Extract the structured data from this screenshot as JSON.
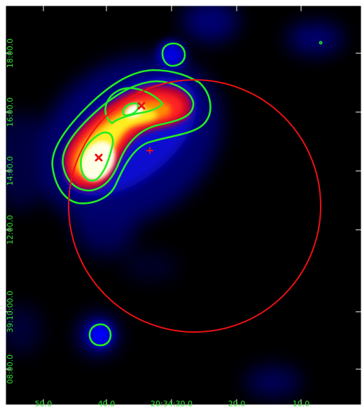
{
  "image": {
    "colormap": "black-blue-red-yellow-white",
    "contour_color": "#22ee22",
    "marker_color": "#ee1111",
    "frame_color": "#ffffff"
  },
  "axes": {
    "ra_ticks": [
      "50.0",
      "40.0",
      "20:34:30.0",
      "20.0",
      "10.0"
    ],
    "dec_ticks": [
      "18:00.0",
      "16:00.0",
      "14:00.0",
      "12:00.0",
      "39:10:00.0",
      "08:00.0"
    ]
  },
  "markers": [
    {
      "name": "source-a",
      "shape": "x"
    },
    {
      "name": "source-b",
      "shape": "x"
    },
    {
      "name": "source-c",
      "shape": "plus"
    }
  ],
  "region": {
    "shape": "circle",
    "color": "#ee1111"
  }
}
